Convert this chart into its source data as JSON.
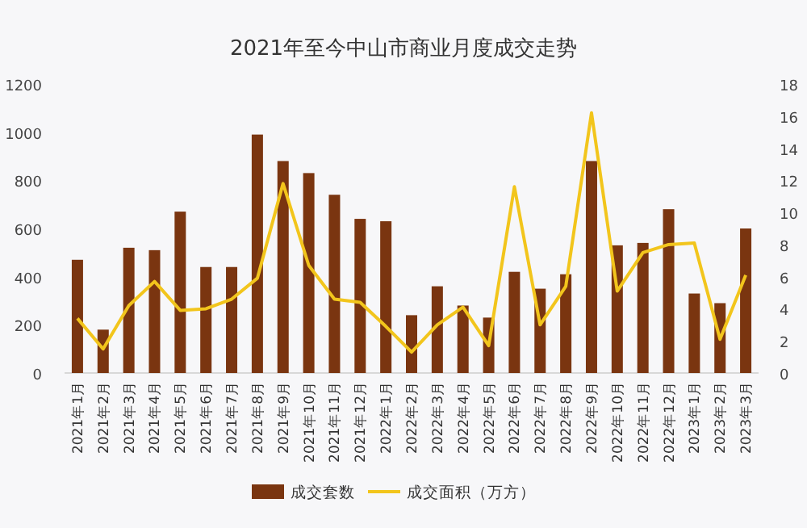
{
  "chart_data": {
    "type": "bar",
    "title": "2021年至今中山市商业月度成交走势",
    "categories": [
      "2021年1月",
      "2021年2月",
      "2021年3月",
      "2021年4月",
      "2021年5月",
      "2021年6月",
      "2021年7月",
      "2021年8月",
      "2021年9月",
      "2021年10月",
      "2021年11月",
      "2021年12月",
      "2022年1月",
      "2022年2月",
      "2022年3月",
      "2022年4月",
      "2022年5月",
      "2022年6月",
      "2022年7月",
      "2022年8月",
      "2022年9月",
      "2022年10月",
      "2022年11月",
      "2022年12月",
      "2023年1月",
      "2023年2月",
      "2023年3月"
    ],
    "series": [
      {
        "name": "成交套数",
        "color": "#7a3510",
        "values": [
          470,
          180,
          520,
          510,
          670,
          440,
          440,
          990,
          880,
          830,
          740,
          640,
          630,
          240,
          360,
          280,
          230,
          420,
          350,
          410,
          880,
          530,
          540,
          680,
          330,
          290,
          600
        ]
      },
      {
        "name": "成交面积（万方）",
        "type": "line",
        "axis": "y2",
        "color": "#f2c51c",
        "values": [
          3.4,
          1.5,
          4.2,
          5.7,
          3.9,
          4.0,
          4.6,
          5.9,
          11.8,
          6.7,
          4.6,
          4.4,
          2.9,
          1.3,
          3.0,
          4.1,
          1.7,
          11.6,
          3.0,
          5.4,
          16.2,
          5.1,
          7.5,
          8.0,
          8.1,
          2.1,
          6.1
        ]
      }
    ],
    "ylim": [
      0,
      1200
    ],
    "yticks": [
      0,
      200,
      400,
      600,
      800,
      1000,
      1200
    ],
    "y2lim": [
      0,
      18
    ],
    "y2ticks": [
      0,
      2,
      4,
      6,
      8,
      10,
      12,
      14,
      16,
      18
    ],
    "legend": "bottom",
    "marker": "none"
  }
}
